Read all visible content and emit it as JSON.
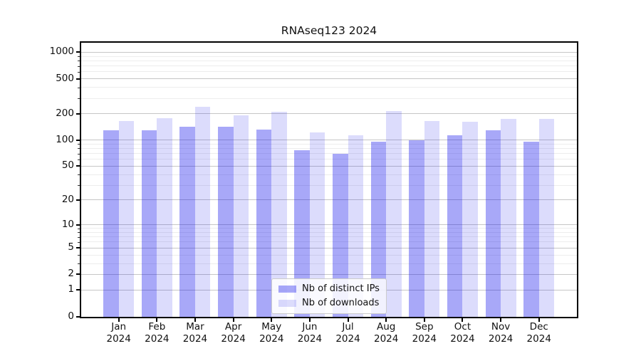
{
  "chart_data": {
    "type": "bar",
    "title": "RNAseq123 2024",
    "categories": [
      "Jan 2024",
      "Feb 2024",
      "Mar 2024",
      "Apr 2024",
      "May 2024",
      "Jun 2024",
      "Jul 2024",
      "Aug 2024",
      "Sep 2024",
      "Oct 2024",
      "Nov 2024",
      "Dec 2024"
    ],
    "series": [
      {
        "name": "Nb of distinct IPs",
        "color": "rgba(10,10,235,0.355)",
        "values": [
          130,
          129,
          142,
          142,
          132,
          77,
          69,
          96,
          99,
          113,
          129,
          96
        ]
      },
      {
        "name": "Nb of downloads",
        "color": "rgba(10,10,235,0.143)",
        "values": [
          165,
          178,
          239,
          192,
          210,
          123,
          114,
          215,
          166,
          163,
          173,
          173
        ]
      }
    ],
    "xlabel": "",
    "ylabel": "",
    "yscale": "log1p",
    "ylim": [
      0,
      1285
    ],
    "y_ticks": [
      0,
      1,
      2,
      5,
      10,
      20,
      50,
      100,
      200,
      500,
      1000
    ],
    "y_minor_ticks": [
      3,
      4,
      6,
      7,
      8,
      9,
      30,
      40,
      60,
      70,
      80,
      90,
      300,
      400,
      600,
      700,
      800,
      900
    ],
    "grid": true,
    "legend_position": "lower center"
  },
  "colors": {
    "grid_major": "#c6c6c6",
    "grid_minor": "#ededed",
    "spine": "#000000",
    "text": "#111111"
  }
}
